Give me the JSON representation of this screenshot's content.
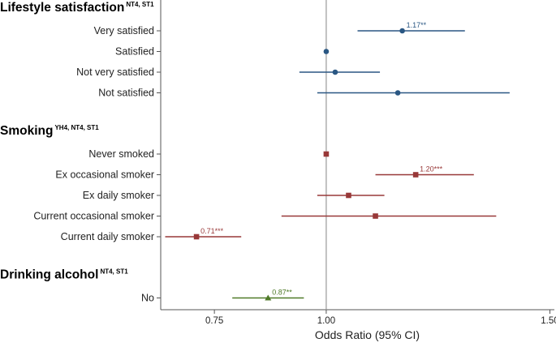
{
  "chart_data": {
    "type": "forest",
    "xlabel": "Odds Ratio (95% CI)",
    "xlim": [
      0.63,
      1.51
    ],
    "reference_line": 1.0,
    "x_ticks": [
      {
        "value": 0.75,
        "label": "0.75"
      },
      {
        "value": 1.0,
        "label": "1.00"
      },
      {
        "value": 1.5,
        "label": "1.50"
      }
    ],
    "colors": {
      "lifestyle": "#2a5783",
      "smoking": "#983838",
      "alcohol": "#4f7a28",
      "reference": "#9a9a9a",
      "axis": "#555555"
    },
    "sections": [
      {
        "key": "lifestyle",
        "title": "Lifestyle satisfaction",
        "superscript": "NT4, ST1",
        "marker": "circle",
        "rows": [
          {
            "label": "Very satisfied",
            "or": 1.17,
            "lo": 1.07,
            "hi": 1.31,
            "annotation": "1.17**"
          },
          {
            "label": "Satisfied",
            "or": 1.0,
            "lo": 1.0,
            "hi": 1.0,
            "annotation": ""
          },
          {
            "label": "Not very satisfied",
            "or": 1.02,
            "lo": 0.94,
            "hi": 1.12,
            "annotation": ""
          },
          {
            "label": "Not satisfied",
            "or": 1.16,
            "lo": 0.98,
            "hi": 1.41,
            "annotation": ""
          }
        ]
      },
      {
        "key": "smoking",
        "title": "Smoking",
        "superscript": "YH4, NT4, ST1",
        "marker": "square",
        "rows": [
          {
            "label": "Never smoked",
            "or": 1.0,
            "lo": 1.0,
            "hi": 1.0,
            "annotation": ""
          },
          {
            "label": "Ex occasional smoker",
            "or": 1.2,
            "lo": 1.11,
            "hi": 1.33,
            "annotation": "1.20***"
          },
          {
            "label": "Ex daily smoker",
            "or": 1.05,
            "lo": 0.98,
            "hi": 1.13,
            "annotation": ""
          },
          {
            "label": "Current occasional smoker",
            "or": 1.11,
            "lo": 0.9,
            "hi": 1.38,
            "annotation": ""
          },
          {
            "label": "Current daily smoker",
            "or": 0.71,
            "lo": 0.64,
            "hi": 0.81,
            "annotation": "0.71***"
          }
        ]
      },
      {
        "key": "alcohol",
        "title": "Drinking alcohol",
        "superscript": "NT4, ST1",
        "marker": "triangle",
        "rows": [
          {
            "label": "No",
            "or": 0.87,
            "lo": 0.79,
            "hi": 0.95,
            "annotation": "0.87**"
          }
        ]
      }
    ]
  }
}
